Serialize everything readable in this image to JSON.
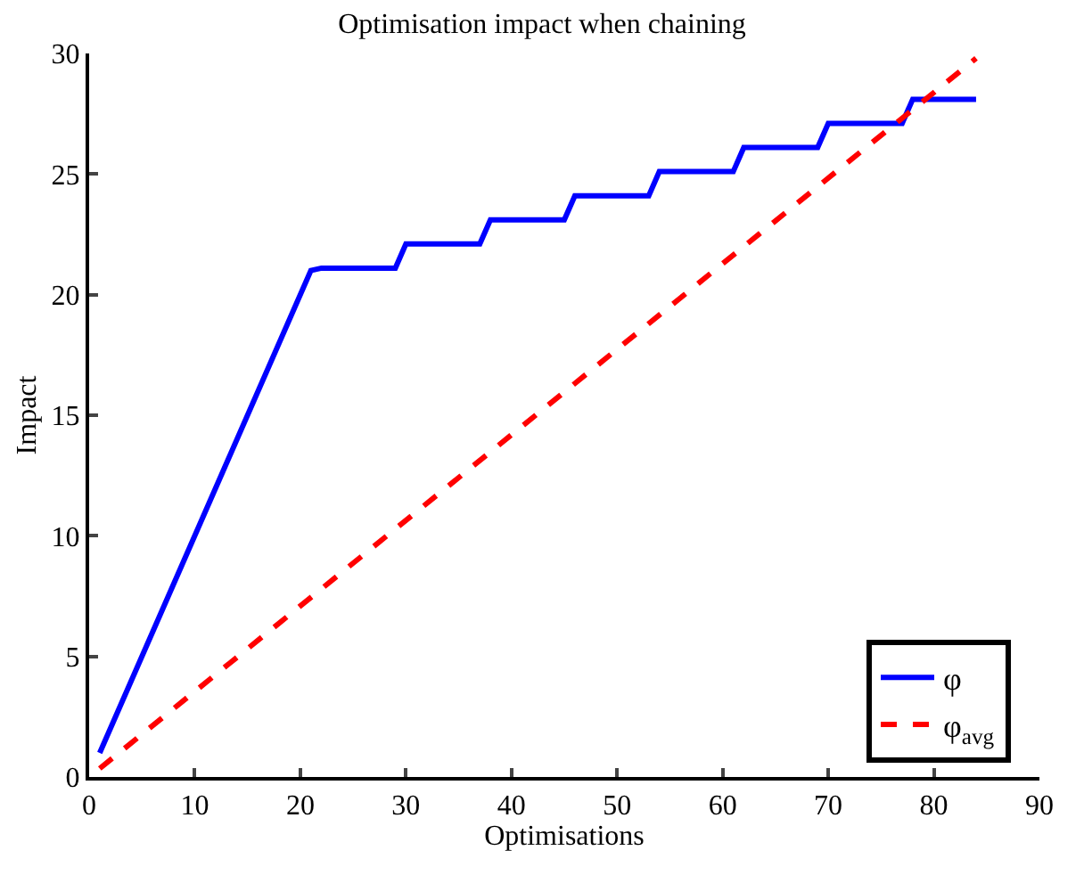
{
  "chart_data": {
    "type": "line",
    "title": "Optimisation impact when chaining",
    "xlabel": "Optimisations",
    "ylabel": "Impact",
    "xlim": [
      0,
      90
    ],
    "xticks": [
      0,
      10,
      20,
      30,
      40,
      50,
      60,
      70,
      80,
      90
    ],
    "ylim": [
      0,
      30
    ],
    "yticks": [
      0,
      5,
      10,
      15,
      20,
      25,
      30
    ],
    "legend": "bottom right",
    "marker": "none",
    "series": [
      {
        "name": "φ",
        "color": "#0000ff",
        "line_style": "solid",
        "x": [
          1,
          21,
          22,
          29,
          30,
          37,
          38,
          45,
          46,
          53,
          54,
          61,
          62,
          69,
          70,
          77,
          78,
          84
        ],
        "values": [
          1,
          21,
          21.1,
          21.1,
          22.1,
          22.1,
          23.1,
          23.1,
          24.1,
          24.1,
          25.1,
          25.1,
          26.1,
          26.1,
          27.1,
          27.1,
          28.1,
          28.1
        ]
      },
      {
        "name": "φ$_{avg}$",
        "color": "#ff0000",
        "line_style": "dashed",
        "x": [
          1,
          84
        ],
        "values": [
          0.35,
          29.8
        ]
      }
    ]
  }
}
